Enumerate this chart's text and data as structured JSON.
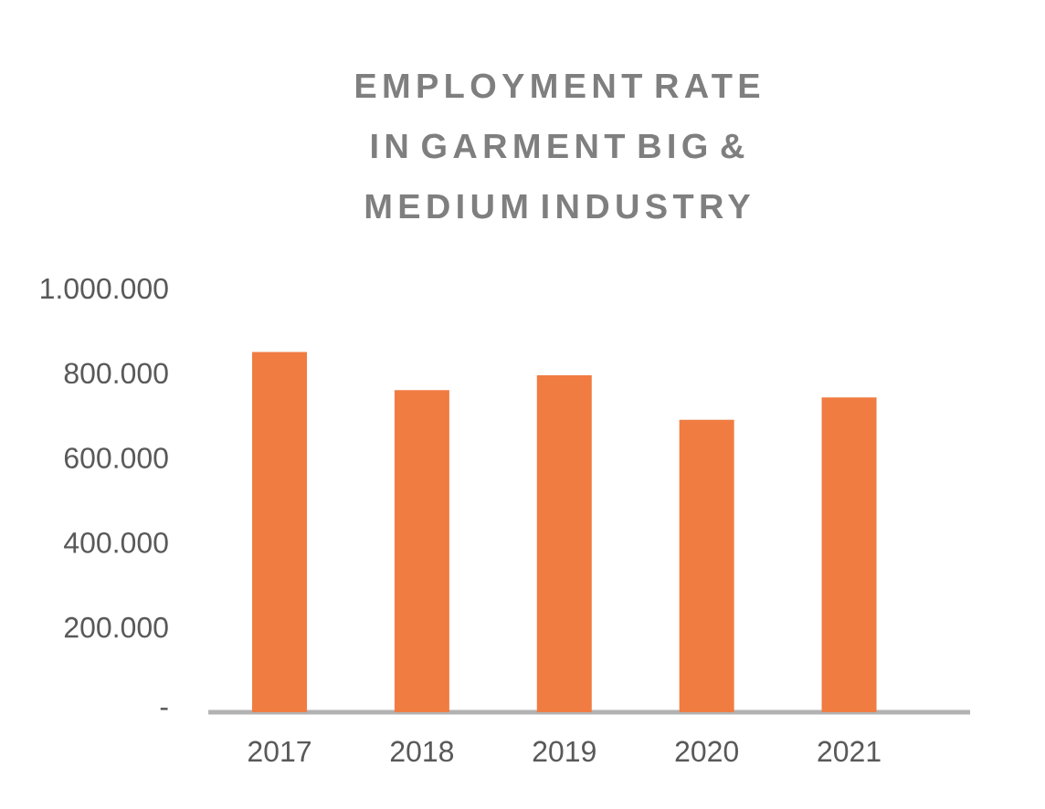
{
  "chart_data": {
    "type": "bar",
    "title": "EMPLOYMENT RATE IN GARMENT BIG & MEDIUM INDUSTRY",
    "categories": [
      "2017",
      "2018",
      "2019",
      "2020",
      "2021"
    ],
    "values": [
      850000,
      760000,
      795000,
      690000,
      743000
    ],
    "color": "#f07c42",
    "ylim": [
      0,
      1000000
    ],
    "yticks": [
      {
        "value": 0,
        "label": "-"
      },
      {
        "value": 200000,
        "label": "200.000"
      },
      {
        "value": 400000,
        "label": "400.000"
      },
      {
        "value": 600000,
        "label": "600.000"
      },
      {
        "value": 800000,
        "label": "800.000"
      },
      {
        "value": 1000000,
        "label": "1.000.000"
      }
    ]
  }
}
